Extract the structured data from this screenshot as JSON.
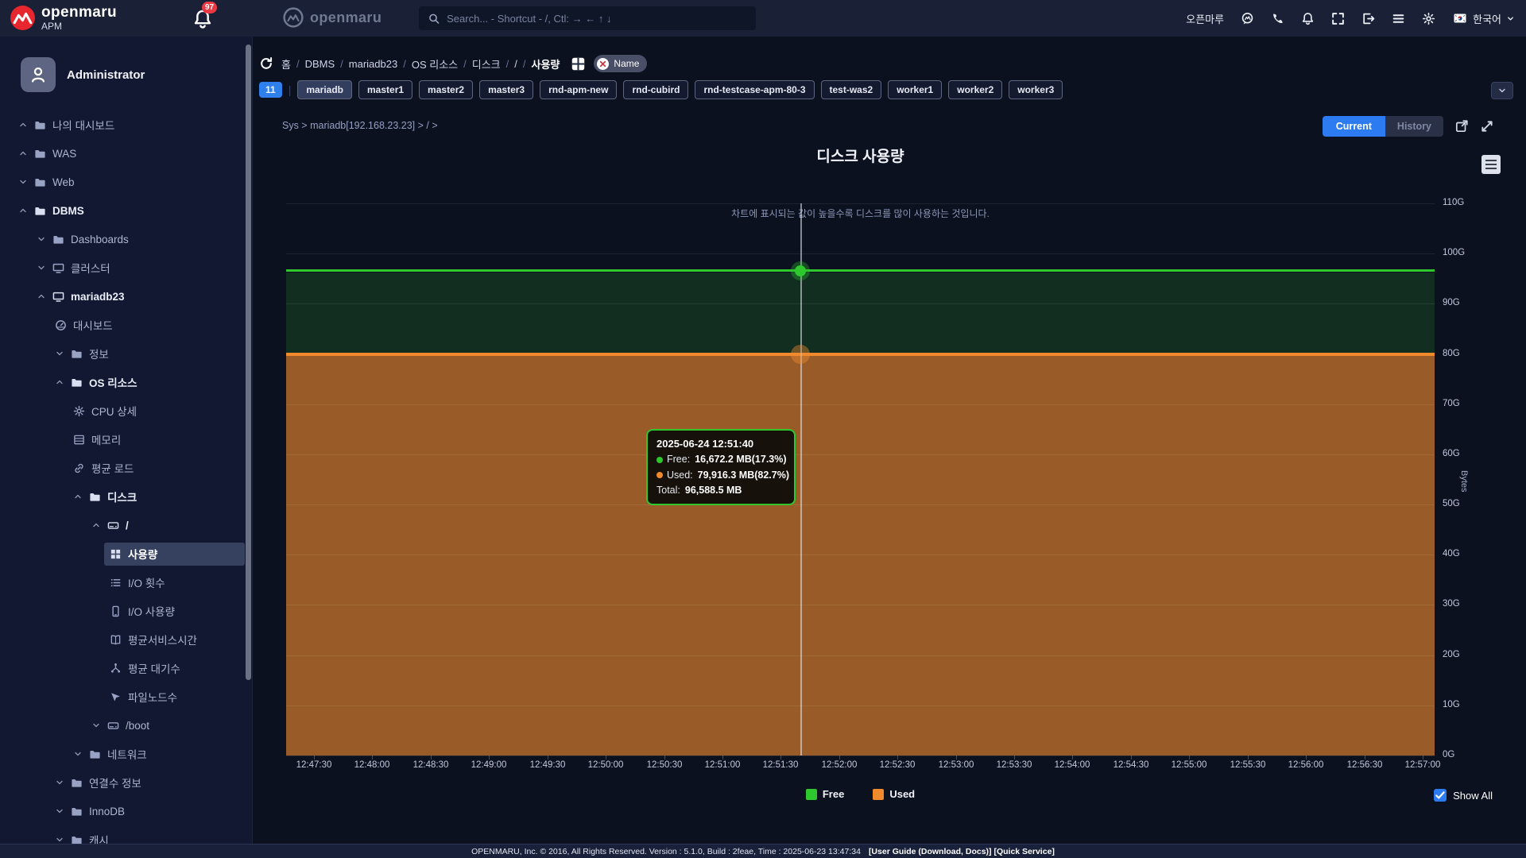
{
  "header": {
    "brand_name": "openmaru",
    "brand_sub": "APM",
    "notification_count": "97",
    "center_brand": "openmaru",
    "search_placeholder": "Search... - Shortcut - /, Ctl: → ← ↑ ↓",
    "user_label": "오픈마루",
    "language": "한국어",
    "right_icons": [
      "openmaru-chat",
      "phone",
      "bell",
      "fullscreen",
      "logout",
      "menu",
      "settings"
    ]
  },
  "sidebar": {
    "user_name": "Administrator",
    "items": [
      {
        "label": "나의 대시보드",
        "level": 0,
        "icon": "folder",
        "chevron": "up"
      },
      {
        "label": "WAS",
        "level": 0,
        "icon": "folder",
        "chevron": "up"
      },
      {
        "label": "Web",
        "level": 0,
        "icon": "folder",
        "chevron": "down"
      },
      {
        "label": "DBMS",
        "level": 0,
        "icon": "folder",
        "chevron": "up",
        "bold": true
      },
      {
        "label": "Dashboards",
        "level": 1,
        "icon": "folder",
        "chevron": "down"
      },
      {
        "label": "클러스터",
        "level": 1,
        "icon": "monitor",
        "chevron": "down"
      },
      {
        "label": "mariadb23",
        "level": 1,
        "icon": "monitor",
        "chevron": "up",
        "bold": true
      },
      {
        "label": "대시보드",
        "level": 2,
        "icon": "dashboard"
      },
      {
        "label": "정보",
        "level": 2,
        "icon": "folder",
        "chevron": "down"
      },
      {
        "label": "OS 리소스",
        "level": 2,
        "icon": "folder",
        "chevron": "up",
        "bold": true
      },
      {
        "label": "CPU 상세",
        "level": 3,
        "icon": "gear"
      },
      {
        "label": "메모리",
        "level": 3,
        "icon": "memory"
      },
      {
        "label": "평균 로드",
        "level": 3,
        "icon": "link"
      },
      {
        "label": "디스크",
        "level": 3,
        "icon": "folder",
        "chevron": "up",
        "bold": true
      },
      {
        "label": "/",
        "level": 4,
        "icon": "disk",
        "chevron": "up",
        "bold": true
      },
      {
        "label": "사용량",
        "level": 5,
        "icon": "grid",
        "active": true
      },
      {
        "label": "I/O 횟수",
        "level": 5,
        "icon": "list"
      },
      {
        "label": "I/O 사용량",
        "level": 5,
        "icon": "mobile"
      },
      {
        "label": "평균서비스시간",
        "level": 5,
        "icon": "book"
      },
      {
        "label": "평균 대기수",
        "level": 5,
        "icon": "tree"
      },
      {
        "label": "파일노드수",
        "level": 5,
        "icon": "cursor"
      },
      {
        "label": "/boot",
        "level": 4,
        "icon": "disk",
        "chevron": "down"
      },
      {
        "label": "네트워크",
        "level": 3,
        "icon": "folder",
        "chevron": "down"
      },
      {
        "label": "연결수 정보",
        "level": 2,
        "icon": "folder",
        "chevron": "down"
      },
      {
        "label": "InnoDB",
        "level": 2,
        "icon": "folder",
        "chevron": "down"
      },
      {
        "label": "캐시",
        "level": 2,
        "icon": "folder",
        "chevron": "down"
      }
    ]
  },
  "breadcrumb": {
    "items": [
      "홈",
      "DBMS",
      "mariadb23",
      "OS 리소스",
      "디스크",
      "/",
      "사용량"
    ],
    "filter_label": "Name"
  },
  "tags": {
    "count": "11",
    "active": "mariadb",
    "items": [
      "mariadb",
      "master1",
      "master2",
      "master3",
      "rnd-apm-new",
      "rnd-cubird",
      "rnd-testcase-apm-80-3",
      "test-was2",
      "worker1",
      "worker2",
      "worker3"
    ]
  },
  "toolbar": {
    "path": "Sys > mariadb[192.168.23.23] > / >",
    "current_label": "Current",
    "history_label": "History"
  },
  "chart_data": {
    "type": "area",
    "stacked": true,
    "title": "디스크 사용량",
    "subtitle": "차트에 표시되는 값이 높을수록 디스크를 많이 사용하는 것입니다.",
    "ylabel": "Bytes",
    "y_unit": "GB",
    "ylim_g": [
      0,
      110
    ],
    "y_ticks": [
      "0G",
      "10G",
      "20G",
      "30G",
      "40G",
      "50G",
      "60G",
      "70G",
      "80G",
      "90G",
      "100G",
      "110G"
    ],
    "x_ticks": [
      "12:47:30",
      "12:48:00",
      "12:48:30",
      "12:49:00",
      "12:49:30",
      "12:50:00",
      "12:50:30",
      "12:51:00",
      "12:51:30",
      "12:52:00",
      "12:52:30",
      "12:53:00",
      "12:53:30",
      "12:54:00",
      "12:54:30",
      "12:55:00",
      "12:55:30",
      "12:56:00",
      "12:56:30",
      "12:57:00"
    ],
    "series": [
      {
        "name": "Free",
        "color": "#2ec72e",
        "constant_value_mb": 16672.2,
        "percent": 17.3,
        "stack_top_gb": 96.6
      },
      {
        "name": "Used",
        "color": "#f08a2d",
        "constant_value_mb": 79916.3,
        "percent": 82.7,
        "stack_top_gb": 79.9
      }
    ],
    "total_mb": 96588.5,
    "crosshair_time": "12:51:40",
    "tooltip": {
      "time": "2025-06-24 12:51:40",
      "rows": [
        {
          "series": "Free",
          "label": "Free:",
          "value": "16,672.2 MB(17.3%)",
          "color": "#2ec72e"
        },
        {
          "series": "Used",
          "label": "Used:",
          "value": "79,916.3 MB(82.7%)",
          "color": "#f08a2d"
        }
      ],
      "total_label": "Total:",
      "total_value": "96,588.5 MB"
    }
  },
  "legend": {
    "show_all_label": "Show All"
  },
  "footer": {
    "text": "OPENMARU, Inc. © 2016, All Rights Reserved.   Version : 5.1.0, Build : 2feae, Time : 2025-06-23 13:47:34",
    "links": "[User Guide (Download, Docs)] [Quick Service]"
  }
}
